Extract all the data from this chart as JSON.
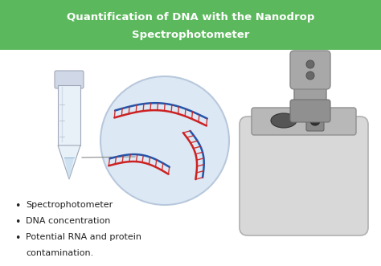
{
  "title_line1": "Quantification of DNA with the Nanodrop",
  "title_line2": "Spectrophotometer",
  "title_bg_color": "#5cb85c",
  "title_text_color": "#ffffff",
  "background_color": "#ffffff",
  "bullet_points": [
    "Spectrophotometer",
    "DNA concentration",
    "Potential RNA and protein\ncontamination."
  ],
  "fig_width": 4.74,
  "fig_height": 3.31,
  "dpi": 100
}
